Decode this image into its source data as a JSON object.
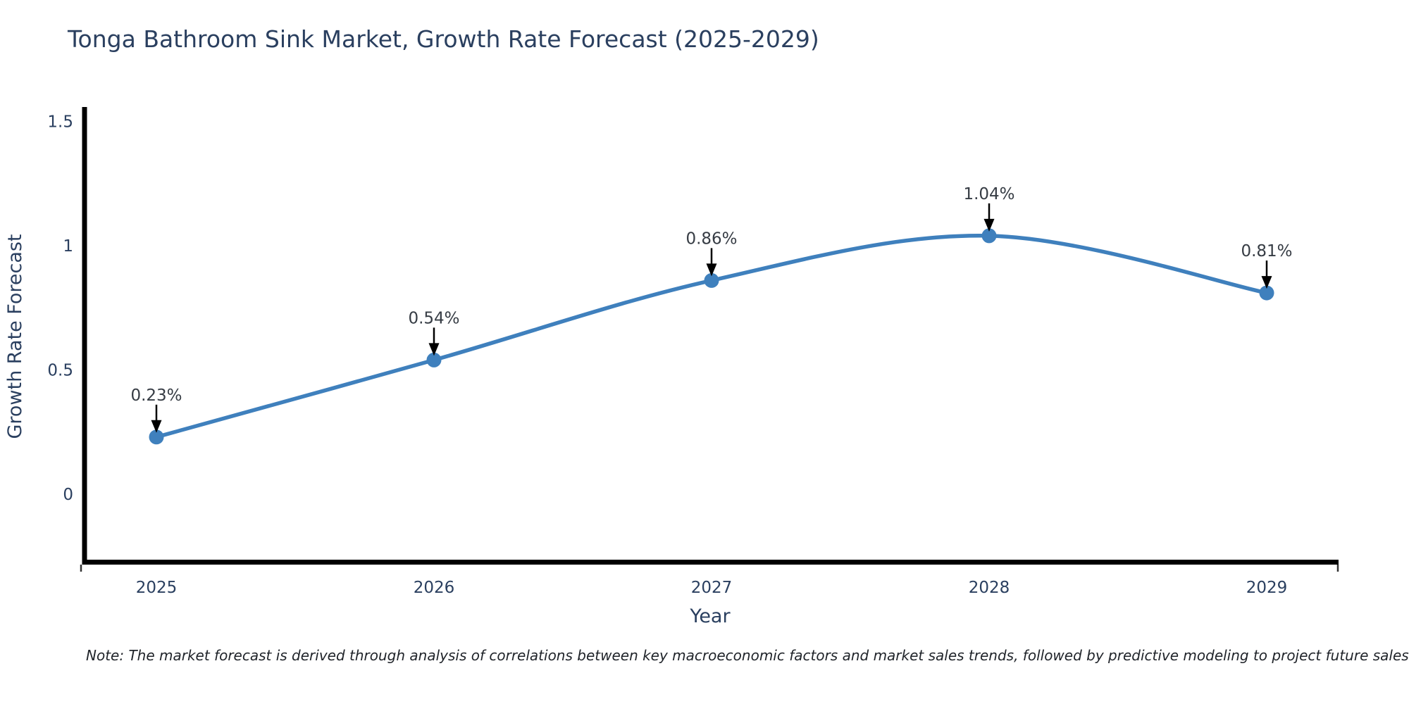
{
  "chart_data": {
    "type": "line",
    "title": "Tonga Bathroom Sink Market, Growth Rate Forecast (2025-2029)",
    "xlabel": "Year",
    "ylabel": "Growth Rate Forecast",
    "categories": [
      "2025",
      "2026",
      "2027",
      "2028",
      "2029"
    ],
    "series": [
      {
        "name": "Growth Rate Forecast",
        "values": [
          0.23,
          0.54,
          0.86,
          1.04,
          0.81
        ]
      }
    ],
    "point_labels": [
      "0.23%",
      "0.54%",
      "0.86%",
      "1.04%",
      "0.81%"
    ],
    "y_ticks": [
      {
        "value": 0,
        "label": "0"
      },
      {
        "value": 0.5,
        "label": "0.5"
      },
      {
        "value": 1,
        "label": "1"
      },
      {
        "value": 1.5,
        "label": "1.5"
      }
    ],
    "ylim": [
      -0.27,
      1.56
    ],
    "grid": false,
    "legend": "none",
    "line_smoothing": true,
    "colors": {
      "line": "#3f80bd",
      "marker": "#3f80bd",
      "axis": "#000000",
      "arrow": "#000000",
      "text": "#2a3f5f",
      "annotation_text": "#363c44"
    },
    "note": "Note: The market forecast is derived through analysis of correlations between key macroeconomic factors and market sales trends, followed by predictive modeling to project future sales"
  }
}
